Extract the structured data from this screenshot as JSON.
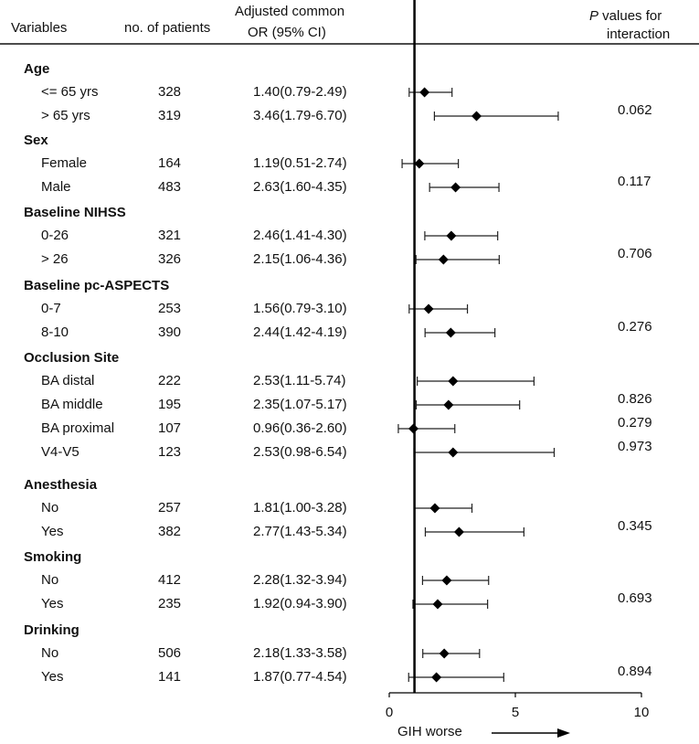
{
  "header": {
    "variables": "Variables",
    "patients": "no. of patients",
    "or_line1": "Adjusted common",
    "or_line2": "OR  (95% CI)",
    "p_line1_italic": "P",
    "p_line1_rest": " values for",
    "p_line2": "interaction"
  },
  "x_axis_title": "GIH worse",
  "chart_data": {
    "type": "forest",
    "xlim": [
      0,
      10
    ],
    "ticks": [
      0,
      5,
      10
    ],
    "reference_line": 1,
    "xlabel": "GIH worse",
    "groups": [
      {
        "name": "Age",
        "rows": [
          {
            "label": "<= 65 yrs",
            "n": "328",
            "ci_text": "1.40(0.79-2.49)",
            "or": 1.4,
            "lo": 0.79,
            "hi": 2.49,
            "p": ""
          },
          {
            "label": "> 65 yrs",
            "n": "319",
            "ci_text": "3.46(1.79-6.70)",
            "or": 3.46,
            "lo": 1.79,
            "hi": 6.7,
            "p": "0.062"
          }
        ]
      },
      {
        "name": "Sex",
        "rows": [
          {
            "label": "Female",
            "n": "164",
            "ci_text": "1.19(0.51-2.74)",
            "or": 1.19,
            "lo": 0.51,
            "hi": 2.74,
            "p": ""
          },
          {
            "label": "Male",
            "n": "483",
            "ci_text": "2.63(1.60-4.35)",
            "or": 2.63,
            "lo": 1.6,
            "hi": 4.35,
            "p": "0.117"
          }
        ]
      },
      {
        "name": "Baseline NIHSS",
        "rows": [
          {
            "label": "0-26",
            "n": "321",
            "ci_text": "2.46(1.41-4.30)",
            "or": 2.46,
            "lo": 1.41,
            "hi": 4.3,
            "p": ""
          },
          {
            "label": "> 26",
            "n": "326",
            "ci_text": "2.15(1.06-4.36)",
            "or": 2.15,
            "lo": 1.06,
            "hi": 4.36,
            "p": "0.706"
          }
        ]
      },
      {
        "name": "Baseline pc-ASPECTS",
        "rows": [
          {
            "label": "0-7",
            "n": "253",
            "ci_text": "1.56(0.79-3.10)",
            "or": 1.56,
            "lo": 0.79,
            "hi": 3.1,
            "p": ""
          },
          {
            "label": "8-10",
            "n": "390",
            "ci_text": "2.44(1.42-4.19)",
            "or": 2.44,
            "lo": 1.42,
            "hi": 4.19,
            "p": "0.276"
          }
        ]
      },
      {
        "name": "Occlusion Site",
        "rows": [
          {
            "label": "BA  distal",
            "n": "222",
            "ci_text": "2.53(1.11-5.74)",
            "or": 2.53,
            "lo": 1.11,
            "hi": 5.74,
            "p": ""
          },
          {
            "label": "BA  middle",
            "n": "195",
            "ci_text": "2.35(1.07-5.17)",
            "or": 2.35,
            "lo": 1.07,
            "hi": 5.17,
            "p": "0.826"
          },
          {
            "label": "BA  proximal",
            "n": "107",
            "ci_text": "0.96(0.36-2.60)",
            "or": 0.96,
            "lo": 0.36,
            "hi": 2.6,
            "p": "0.279"
          },
          {
            "label": "V4-V5",
            "n": "123",
            "ci_text": "2.53(0.98-6.54)",
            "or": 2.53,
            "lo": 0.98,
            "hi": 6.54,
            "p": "0.973"
          }
        ]
      },
      {
        "name": "Anesthesia",
        "rows": [
          {
            "label": "No",
            "n": "257",
            "ci_text": "1.81(1.00-3.28)",
            "or": 1.81,
            "lo": 1.0,
            "hi": 3.28,
            "p": ""
          },
          {
            "label": "Yes",
            "n": "382",
            "ci_text": "2.77(1.43-5.34)",
            "or": 2.77,
            "lo": 1.43,
            "hi": 5.34,
            "p": "0.345"
          }
        ]
      },
      {
        "name": "Smoking",
        "rows": [
          {
            "label": "No",
            "n": "412",
            "ci_text": "2.28(1.32-3.94)",
            "or": 2.28,
            "lo": 1.32,
            "hi": 3.94,
            "p": ""
          },
          {
            "label": "Yes",
            "n": "235",
            "ci_text": "1.92(0.94-3.90)",
            "or": 1.92,
            "lo": 0.94,
            "hi": 3.9,
            "p": "0.693"
          }
        ]
      },
      {
        "name": "Drinking",
        "rows": [
          {
            "label": "No",
            "n": "506",
            "ci_text": "2.18(1.33-3.58)",
            "or": 2.18,
            "lo": 1.33,
            "hi": 3.58,
            "p": ""
          },
          {
            "label": "Yes",
            "n": "141",
            "ci_text": "1.87(0.77-4.54)",
            "or": 1.87,
            "lo": 0.77,
            "hi": 4.54,
            "p": "0.894"
          }
        ]
      }
    ]
  }
}
